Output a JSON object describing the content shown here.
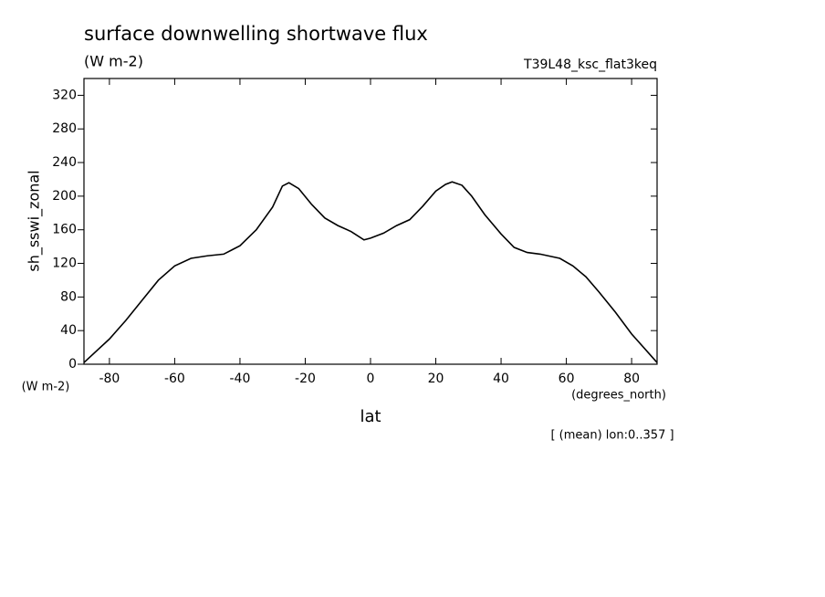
{
  "chart_data": {
    "type": "line",
    "title": "surface downwelling shortwave flux",
    "subtitle": "(W m-2)",
    "dataset_label": "T39L48_ksc_flat3keq",
    "y_label": "sh_sswi_zonal",
    "y_units": "(W m-2)",
    "x_units": "(degrees_north)",
    "x_label": "lat",
    "annotation": "[ (mean) lon:0..357 ]",
    "x": [
      -87.8,
      -80,
      -75,
      -70,
      -65,
      -60,
      -55,
      -50,
      -45,
      -40,
      -35,
      -30,
      -27,
      -25,
      -22,
      -18,
      -14,
      -10,
      -6,
      -2,
      0,
      4,
      8,
      12,
      16,
      20,
      23,
      25,
      28,
      31,
      35,
      40,
      44,
      48,
      52,
      58,
      62,
      66,
      70,
      75,
      80,
      87.8
    ],
    "series": [
      {
        "color": "#000000",
        "values": [
          2,
          30,
          52,
          76,
          100,
          117,
          126,
          129,
          131,
          141,
          160,
          187,
          212,
          216,
          209,
          190,
          174,
          165,
          158,
          148,
          150,
          156,
          165,
          172,
          188,
          206,
          214,
          217,
          213,
          200,
          178,
          155,
          139,
          133,
          131,
          126,
          117,
          104,
          86,
          62,
          36,
          2
        ]
      }
    ],
    "xlim": [
      -87.8,
      87.8
    ],
    "ylim": [
      0,
      340
    ],
    "xticks": [
      -80,
      -60,
      -40,
      -20,
      0,
      20,
      40,
      60,
      80
    ],
    "yticks": [
      0,
      40,
      80,
      120,
      160,
      200,
      240,
      280,
      320
    ]
  }
}
